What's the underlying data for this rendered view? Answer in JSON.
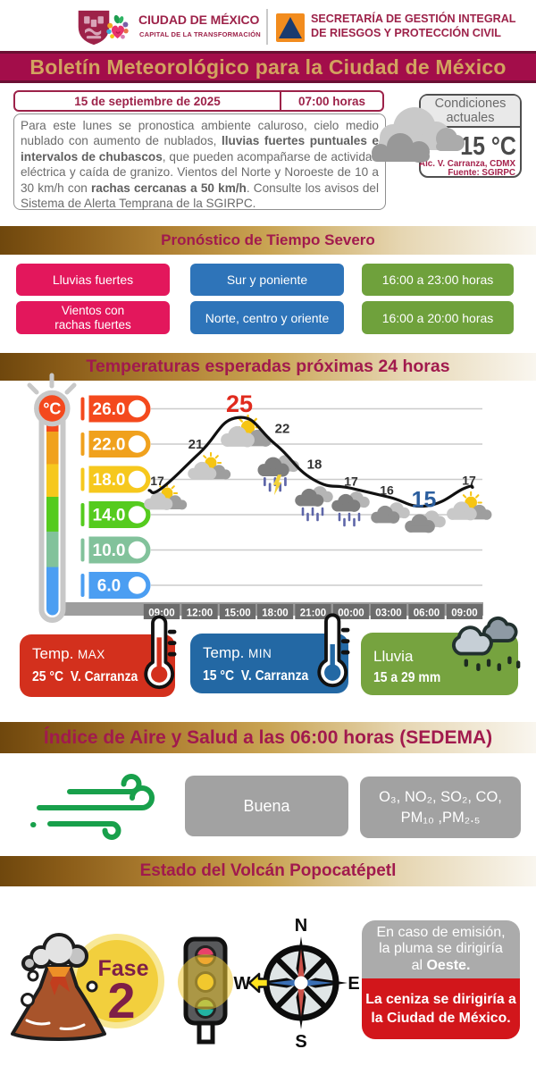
{
  "header": {
    "brand_title": "CIUDAD DE MÉXICO",
    "brand_subtitle": "CAPITAL DE LA TRANSFORMACIÓN",
    "agency_line1": "SECRETARÍA DE GESTIÓN INTEGRAL",
    "agency_line2": "DE RIESGOS Y PROTECCIÓN CIVIL"
  },
  "banner": {
    "title": "Boletín Meteorológico para la Ciudad de México"
  },
  "bulletin": {
    "date": "15 de septiembre de 2025",
    "time": "07:00 horas",
    "forecast_segments": [
      {
        "text": "Para este lunes se pronostica ambiente caluroso, cielo medio nublado con aumento de nublados, ",
        "bold": false
      },
      {
        "text": "lluvias fuertes puntuales e intervalos de chubascos",
        "bold": true
      },
      {
        "text": ", que pueden acompañarse de actividad eléctrica y caída de granizo. Vientos del Norte y Noroeste de 10 a 30 km/h con ",
        "bold": false
      },
      {
        "text": "rachas cercanas a 50 km/h",
        "bold": true
      },
      {
        "text": ". Consulte los avisos del Sistema de Alerta Temprana de la SGIRPC.",
        "bold": false
      }
    ]
  },
  "current_conditions": {
    "title_line1": "Condiciones",
    "title_line2": "actuales",
    "temperature": "15 °C",
    "location": "Alc. V. Carranza, CDMX",
    "source": "Fuente: SGIRPC"
  },
  "severe_weather": {
    "title": "Pronóstico de Tiempo Severo",
    "rows": [
      {
        "event": "Lluvias fuertes",
        "zone": "Sur y poniente",
        "time": "16:00 a 23:00 horas"
      },
      {
        "event": "Vientos con rachas fuertes",
        "zone": "Norte, centro y oriente",
        "time": "16:00 a 20:00 horas"
      }
    ]
  },
  "chart_data": {
    "type": "line",
    "title": "Temperaturas esperadas próximas 24 horas",
    "unit": "°C",
    "x_labels": [
      "09:00",
      "12:00",
      "15:00",
      "18:00",
      "21:00",
      "00:00",
      "03:00",
      "06:00",
      "09:00"
    ],
    "values": [
      17,
      21,
      25,
      22,
      18,
      17,
      16,
      15,
      17
    ],
    "conditions": [
      "sun-cloud",
      "sun-cloud",
      "sun-cloud",
      "storm",
      "rain",
      "rain",
      "cloudy",
      "cloudy",
      "sun-cloud"
    ],
    "max_value": 25,
    "min_value": 15,
    "max_color": "#e02a1d",
    "min_color": "#2b5e9e",
    "line_color": "#111111",
    "grid": true,
    "legend_position": "none",
    "ylim": [
      4,
      28
    ],
    "scale_ticks": [
      {
        "label": "26.0",
        "value": 26.0,
        "color": "#f4491d"
      },
      {
        "label": "22.0",
        "value": 22.0,
        "color": "#f0a11d"
      },
      {
        "label": "18.0",
        "value": 18.0,
        "color": "#f6c81d"
      },
      {
        "label": "14.0",
        "value": 14.0,
        "color": "#55cb1e"
      },
      {
        "label": "10.0",
        "value": 10.0,
        "color": "#82c29b"
      },
      {
        "label": "6.0",
        "value": 6.0,
        "color": "#4b9ef2"
      }
    ]
  },
  "summary_cards": {
    "max": {
      "title": "Temp.",
      "suffix": "MAX",
      "value": "25 °C",
      "location": "V. Carranza",
      "color": "#d3301d"
    },
    "min": {
      "title": "Temp.",
      "suffix": "MIN",
      "value": "15 °C",
      "location": "V. Carranza",
      "color": "#2368a4"
    },
    "rain": {
      "title": "Lluvia",
      "value": "15 a 29 mm",
      "color": "#76a33f"
    }
  },
  "air_quality": {
    "title": "Índice de Aire y Salud a las 06:00 horas (SEDEMA)",
    "status": "Buena",
    "pollutants_line1": "O₃, NO₂, SO₂, CO,",
    "pollutants_line2": "PM₁₀ ,PM₂.₅"
  },
  "volcano": {
    "title": "Estado del Volcán Popocatépetl",
    "phase_label": "Fase",
    "phase_number": "2",
    "traffic_light_state": "amarillo",
    "compass_labels": {
      "n": "N",
      "s": "S",
      "e": "E",
      "w": "W"
    },
    "plume_line1": "En caso de emisión,",
    "plume_line2": "la pluma se dirigiría",
    "plume_line3_prefix": "al ",
    "plume_line3_bold": "Oeste.",
    "ash_line1": "La ceniza se dirigiría a",
    "ash_line2": "la Ciudad de México."
  }
}
